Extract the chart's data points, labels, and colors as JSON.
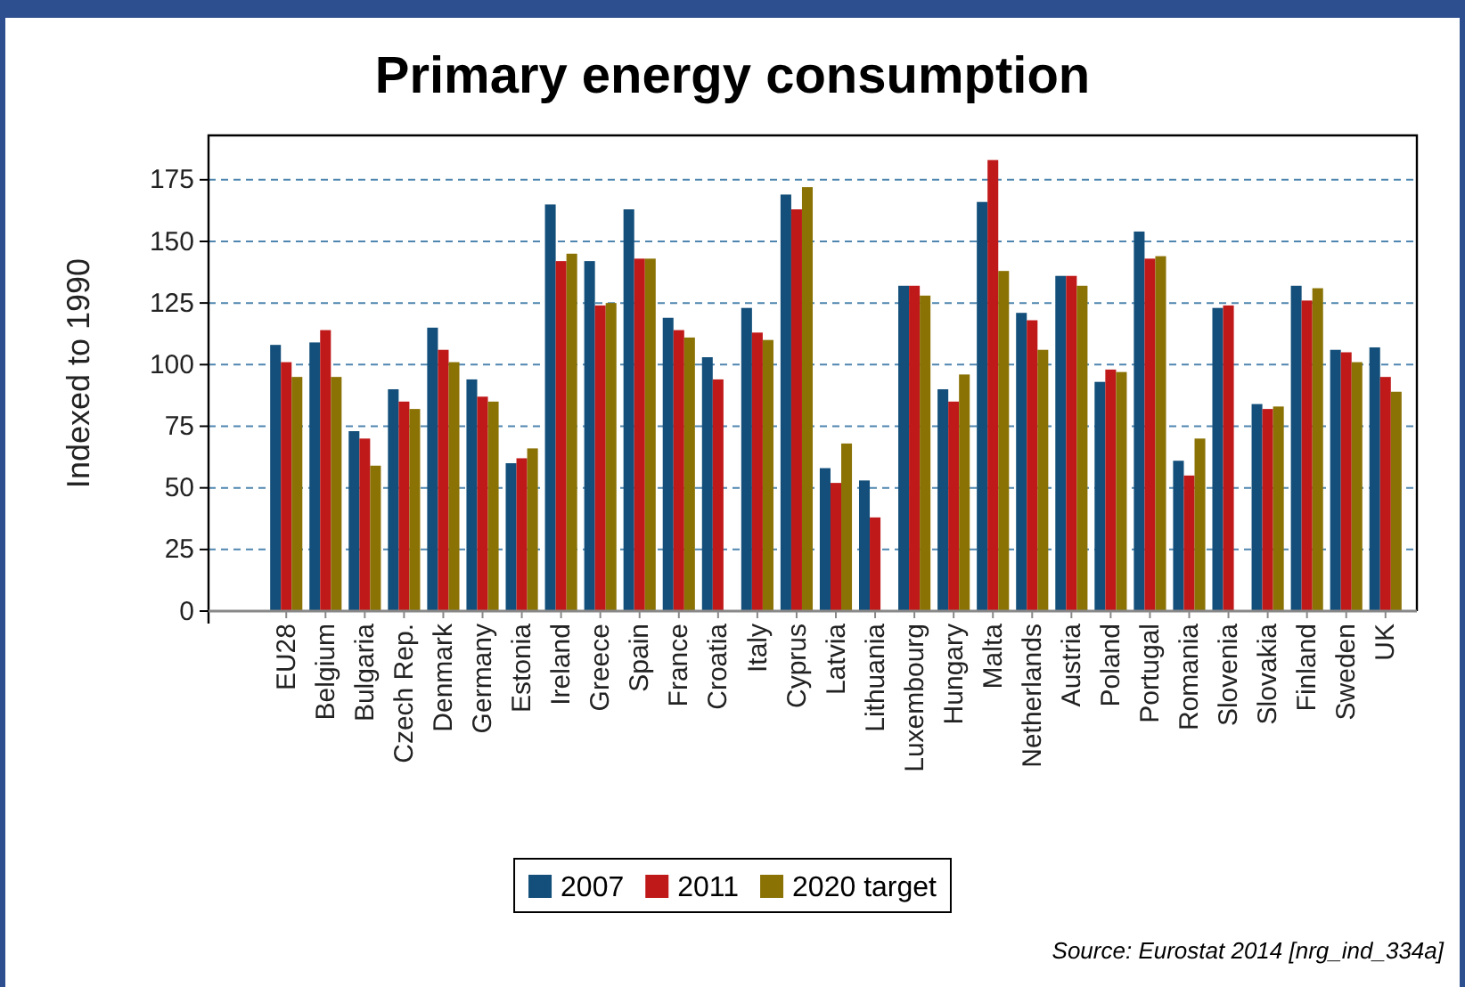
{
  "chart_data": {
    "type": "bar",
    "title": "Primary energy consumption",
    "ylabel": "Indexed to 1990",
    "categories": [
      "EU28",
      "Belgium",
      "Bulgaria",
      "Czech Rep.",
      "Denmark",
      "Germany",
      "Estonia",
      "Ireland",
      "Greece",
      "Spain",
      "France",
      "Croatia",
      "Italy",
      "Cyprus",
      "Latvia",
      "Lithuania",
      "Luxembourg",
      "Hungary",
      "Malta",
      "Netherlands",
      "Austria",
      "Poland",
      "Portugal",
      "Romania",
      "Slovenia",
      "Slovakia",
      "Finland",
      "Sweden",
      "UK"
    ],
    "series": [
      {
        "name": "2007",
        "color": "#134f7a",
        "values": [
          108,
          109,
          73,
          90,
          115,
          94,
          60,
          165,
          142,
          163,
          119,
          103,
          123,
          169,
          58,
          53,
          132,
          90,
          166,
          121,
          136,
          93,
          154,
          61,
          123,
          84,
          132,
          106,
          107
        ]
      },
      {
        "name": "2011",
        "color": "#c0191a",
        "values": [
          101,
          114,
          70,
          85,
          106,
          87,
          62,
          142,
          124,
          143,
          114,
          94,
          113,
          163,
          52,
          38,
          132,
          85,
          183,
          118,
          136,
          98,
          143,
          55,
          124,
          82,
          126,
          105,
          95
        ]
      },
      {
        "name": "2020 target",
        "color": "#8a7205",
        "values": [
          95,
          95,
          59,
          82,
          101,
          85,
          66,
          145,
          125,
          143,
          111,
          null,
          110,
          172,
          68,
          null,
          128,
          96,
          138,
          106,
          132,
          97,
          144,
          70,
          null,
          83,
          131,
          101,
          89
        ]
      }
    ],
    "ylim": [
      0,
      193
    ],
    "yticks": [
      0,
      25,
      50,
      75,
      100,
      125,
      150,
      175
    ],
    "grid": "y",
    "legend": "bottom",
    "annotations": [
      "Source: Eurostat 2014 [nrg_ind_334a]"
    ]
  }
}
